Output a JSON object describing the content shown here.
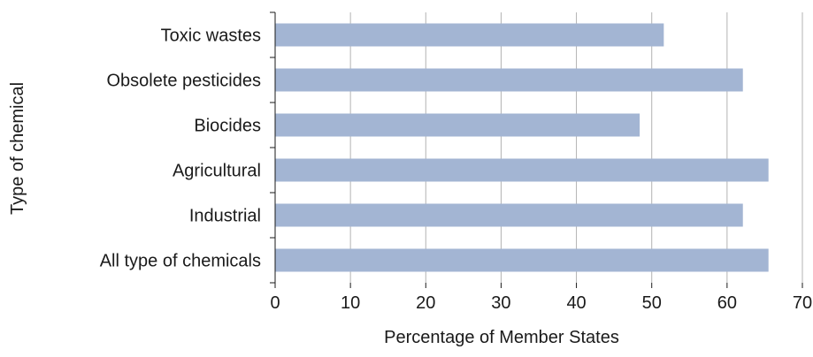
{
  "chart_data": {
    "type": "bar",
    "orientation": "horizontal",
    "title": "",
    "xlabel": "Percentage of Member States",
    "ylabel": "Type of chemical",
    "xlim": [
      0,
      70
    ],
    "xticks": [
      "0",
      "10",
      "20",
      "30",
      "40",
      "50",
      "60",
      "70"
    ],
    "xtick_values": [
      0,
      10,
      20,
      30,
      40,
      50,
      60,
      70
    ],
    "categories": [
      "Toxic wastes",
      "Obsolete pesticides",
      "Biocides",
      "Agricultural",
      "Industrial",
      "All type of chemicals"
    ],
    "values": [
      51.6,
      62.1,
      48.4,
      65.5,
      62.1,
      65.5
    ],
    "grid": "vertical",
    "legend": "none",
    "colors": {
      "bar": "#a3b5d3",
      "grid": "#b3b3b3",
      "axis": "#1a1a1a",
      "text": "#1a1a1a"
    }
  }
}
